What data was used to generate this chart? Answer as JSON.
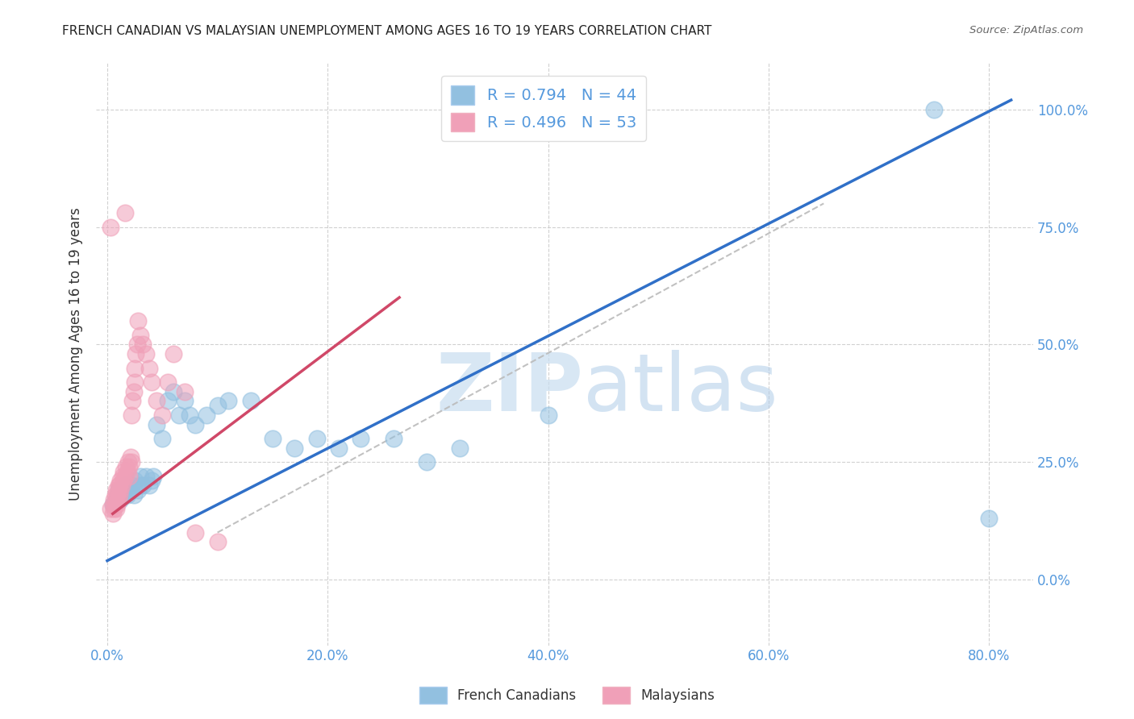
{
  "title": "FRENCH CANADIAN VS MALAYSIAN UNEMPLOYMENT AMONG AGES 16 TO 19 YEARS CORRELATION CHART",
  "source": "Source: ZipAtlas.com",
  "ylabel": "Unemployment Among Ages 16 to 19 years",
  "xlabel_ticks": [
    "0.0%",
    "",
    "",
    "",
    "",
    "20.0%",
    "",
    "",
    "",
    "",
    "40.0%",
    "",
    "",
    "",
    "",
    "60.0%",
    "",
    "",
    "",
    "",
    "80.0%"
  ],
  "xlabel_vals": [
    0.0,
    0.04,
    0.08,
    0.12,
    0.16,
    0.2,
    0.24,
    0.28,
    0.32,
    0.36,
    0.4,
    0.44,
    0.48,
    0.52,
    0.56,
    0.6,
    0.64,
    0.68,
    0.72,
    0.76,
    0.8
  ],
  "xlabel_major_ticks": [
    0.0,
    0.2,
    0.4,
    0.6,
    0.8
  ],
  "xlabel_major_labels": [
    "0.0%",
    "20.0%",
    "40.0%",
    "60.0%",
    "80.0%"
  ],
  "ylabel_ticks": [
    "0.0%",
    "25.0%",
    "50.0%",
    "75.0%",
    "100.0%"
  ],
  "ylabel_vals": [
    0.0,
    0.25,
    0.5,
    0.75,
    1.0
  ],
  "xlim": [
    -0.01,
    0.84
  ],
  "ylim": [
    -0.14,
    1.1
  ],
  "legend_labels": [
    "French Canadians",
    "Malaysians"
  ],
  "blue_R": 0.794,
  "blue_N": 44,
  "pink_R": 0.496,
  "pink_N": 53,
  "blue_color": "#92c0e0",
  "pink_color": "#f0a0b8",
  "blue_line_color": "#3070c8",
  "pink_line_color": "#d04868",
  "blue_scatter": {
    "x": [
      0.005,
      0.008,
      0.01,
      0.01,
      0.012,
      0.014,
      0.015,
      0.016,
      0.018,
      0.02,
      0.022,
      0.024,
      0.025,
      0.028,
      0.03,
      0.03,
      0.032,
      0.035,
      0.038,
      0.04,
      0.042,
      0.045,
      0.05,
      0.055,
      0.06,
      0.065,
      0.07,
      0.075,
      0.08,
      0.09,
      0.1,
      0.11,
      0.13,
      0.15,
      0.17,
      0.19,
      0.21,
      0.23,
      0.26,
      0.29,
      0.32,
      0.4,
      0.75,
      0.8
    ],
    "y": [
      0.16,
      0.17,
      0.18,
      0.19,
      0.17,
      0.18,
      0.19,
      0.2,
      0.18,
      0.19,
      0.2,
      0.18,
      0.21,
      0.19,
      0.2,
      0.22,
      0.2,
      0.22,
      0.2,
      0.21,
      0.22,
      0.33,
      0.3,
      0.38,
      0.4,
      0.35,
      0.38,
      0.35,
      0.33,
      0.35,
      0.37,
      0.38,
      0.38,
      0.3,
      0.28,
      0.3,
      0.28,
      0.3,
      0.3,
      0.25,
      0.28,
      0.35,
      1.0,
      0.13
    ]
  },
  "pink_scatter": {
    "x": [
      0.003,
      0.005,
      0.005,
      0.006,
      0.006,
      0.007,
      0.007,
      0.008,
      0.008,
      0.008,
      0.009,
      0.009,
      0.01,
      0.01,
      0.01,
      0.011,
      0.011,
      0.012,
      0.012,
      0.013,
      0.014,
      0.015,
      0.015,
      0.016,
      0.017,
      0.018,
      0.019,
      0.02,
      0.02,
      0.021,
      0.022,
      0.022,
      0.023,
      0.024,
      0.025,
      0.025,
      0.026,
      0.027,
      0.028,
      0.03,
      0.032,
      0.035,
      0.038,
      0.04,
      0.045,
      0.05,
      0.055,
      0.06,
      0.07,
      0.08,
      0.1,
      0.016,
      0.003
    ],
    "y": [
      0.15,
      0.14,
      0.16,
      0.15,
      0.17,
      0.16,
      0.18,
      0.15,
      0.17,
      0.19,
      0.16,
      0.18,
      0.17,
      0.19,
      0.2,
      0.18,
      0.2,
      0.19,
      0.21,
      0.2,
      0.22,
      0.21,
      0.23,
      0.22,
      0.24,
      0.23,
      0.25,
      0.22,
      0.24,
      0.26,
      0.25,
      0.35,
      0.38,
      0.4,
      0.42,
      0.45,
      0.48,
      0.5,
      0.55,
      0.52,
      0.5,
      0.48,
      0.45,
      0.42,
      0.38,
      0.35,
      0.42,
      0.48,
      0.4,
      0.1,
      0.08,
      0.78,
      0.75
    ]
  },
  "blue_line": {
    "x0": 0.0,
    "y0": 0.04,
    "x1": 0.82,
    "y1": 1.02
  },
  "pink_line": {
    "x0": 0.005,
    "y0": 0.14,
    "x1": 0.265,
    "y1": 0.6
  },
  "diag_line": {
    "x0": 0.1,
    "y0": 0.1,
    "x1": 0.65,
    "y1": 0.8
  },
  "watermark_zip": "ZIP",
  "watermark_atlas": "atlas",
  "grid_color": "#cccccc",
  "background_color": "#ffffff",
  "title_fontsize": 11,
  "axis_label_color": "#333333",
  "tick_label_color": "#5599dd",
  "right_tick_color": "#5599dd"
}
